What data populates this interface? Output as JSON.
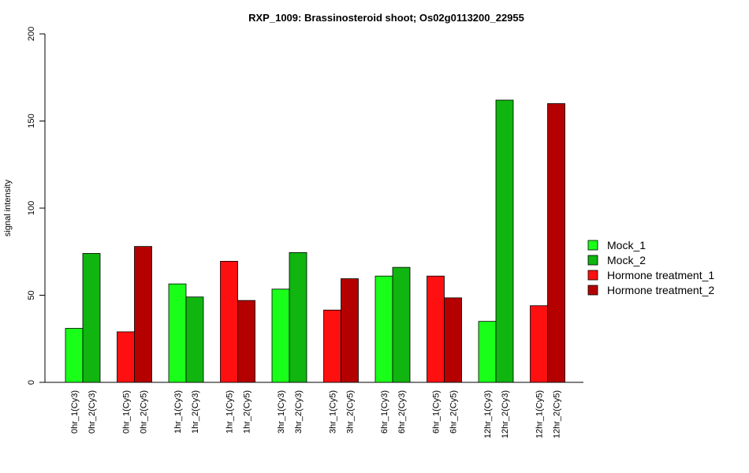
{
  "chart_data": {
    "type": "bar",
    "title": "RXP_1009: Brassinosteroid shoot; Os02g0113200_22955",
    "xlabel": "",
    "ylabel": "signal intensity",
    "ylim": [
      0,
      200
    ],
    "yticks": [
      0,
      50,
      100,
      150,
      200
    ],
    "grid": false,
    "legend_position": "right",
    "categories": [
      "0hr_1(Cy3)",
      "0hr_2(Cy3)",
      "0hr_1(Cy5)",
      "0hr_2(Cy5)",
      "1hr_1(Cy3)",
      "1hr_2(Cy3)",
      "1hr_1(Cy5)",
      "1hr_2(Cy5)",
      "3hr_1(Cy3)",
      "3hr_2(Cy3)",
      "3hr_1(Cy5)",
      "3hr_2(Cy5)",
      "6hr_1(Cy3)",
      "6hr_2(Cy3)",
      "6hr_1(Cy5)",
      "6hr_2(Cy5)",
      "12hr_1(Cy3)",
      "12hr_2(Cy3)",
      "12hr_1(Cy5)",
      "12hr_2(Cy5)"
    ],
    "values": [
      31,
      74,
      29,
      78,
      56.5,
      49,
      69.5,
      47,
      53.5,
      74.5,
      41.5,
      59.5,
      61,
      66,
      61,
      48.5,
      35,
      162,
      44,
      160
    ],
    "bar_series": [
      0,
      1,
      2,
      3,
      0,
      1,
      2,
      3,
      0,
      1,
      2,
      3,
      0,
      1,
      2,
      3,
      0,
      1,
      2,
      3
    ],
    "series": [
      {
        "name": "Mock_1",
        "color": "#1aff1a"
      },
      {
        "name": "Mock_2",
        "color": "#10b510"
      },
      {
        "name": "Hormone treatment_1",
        "color": "#ff1010"
      },
      {
        "name": "Hormone treatment_2",
        "color": "#b50000"
      }
    ]
  }
}
